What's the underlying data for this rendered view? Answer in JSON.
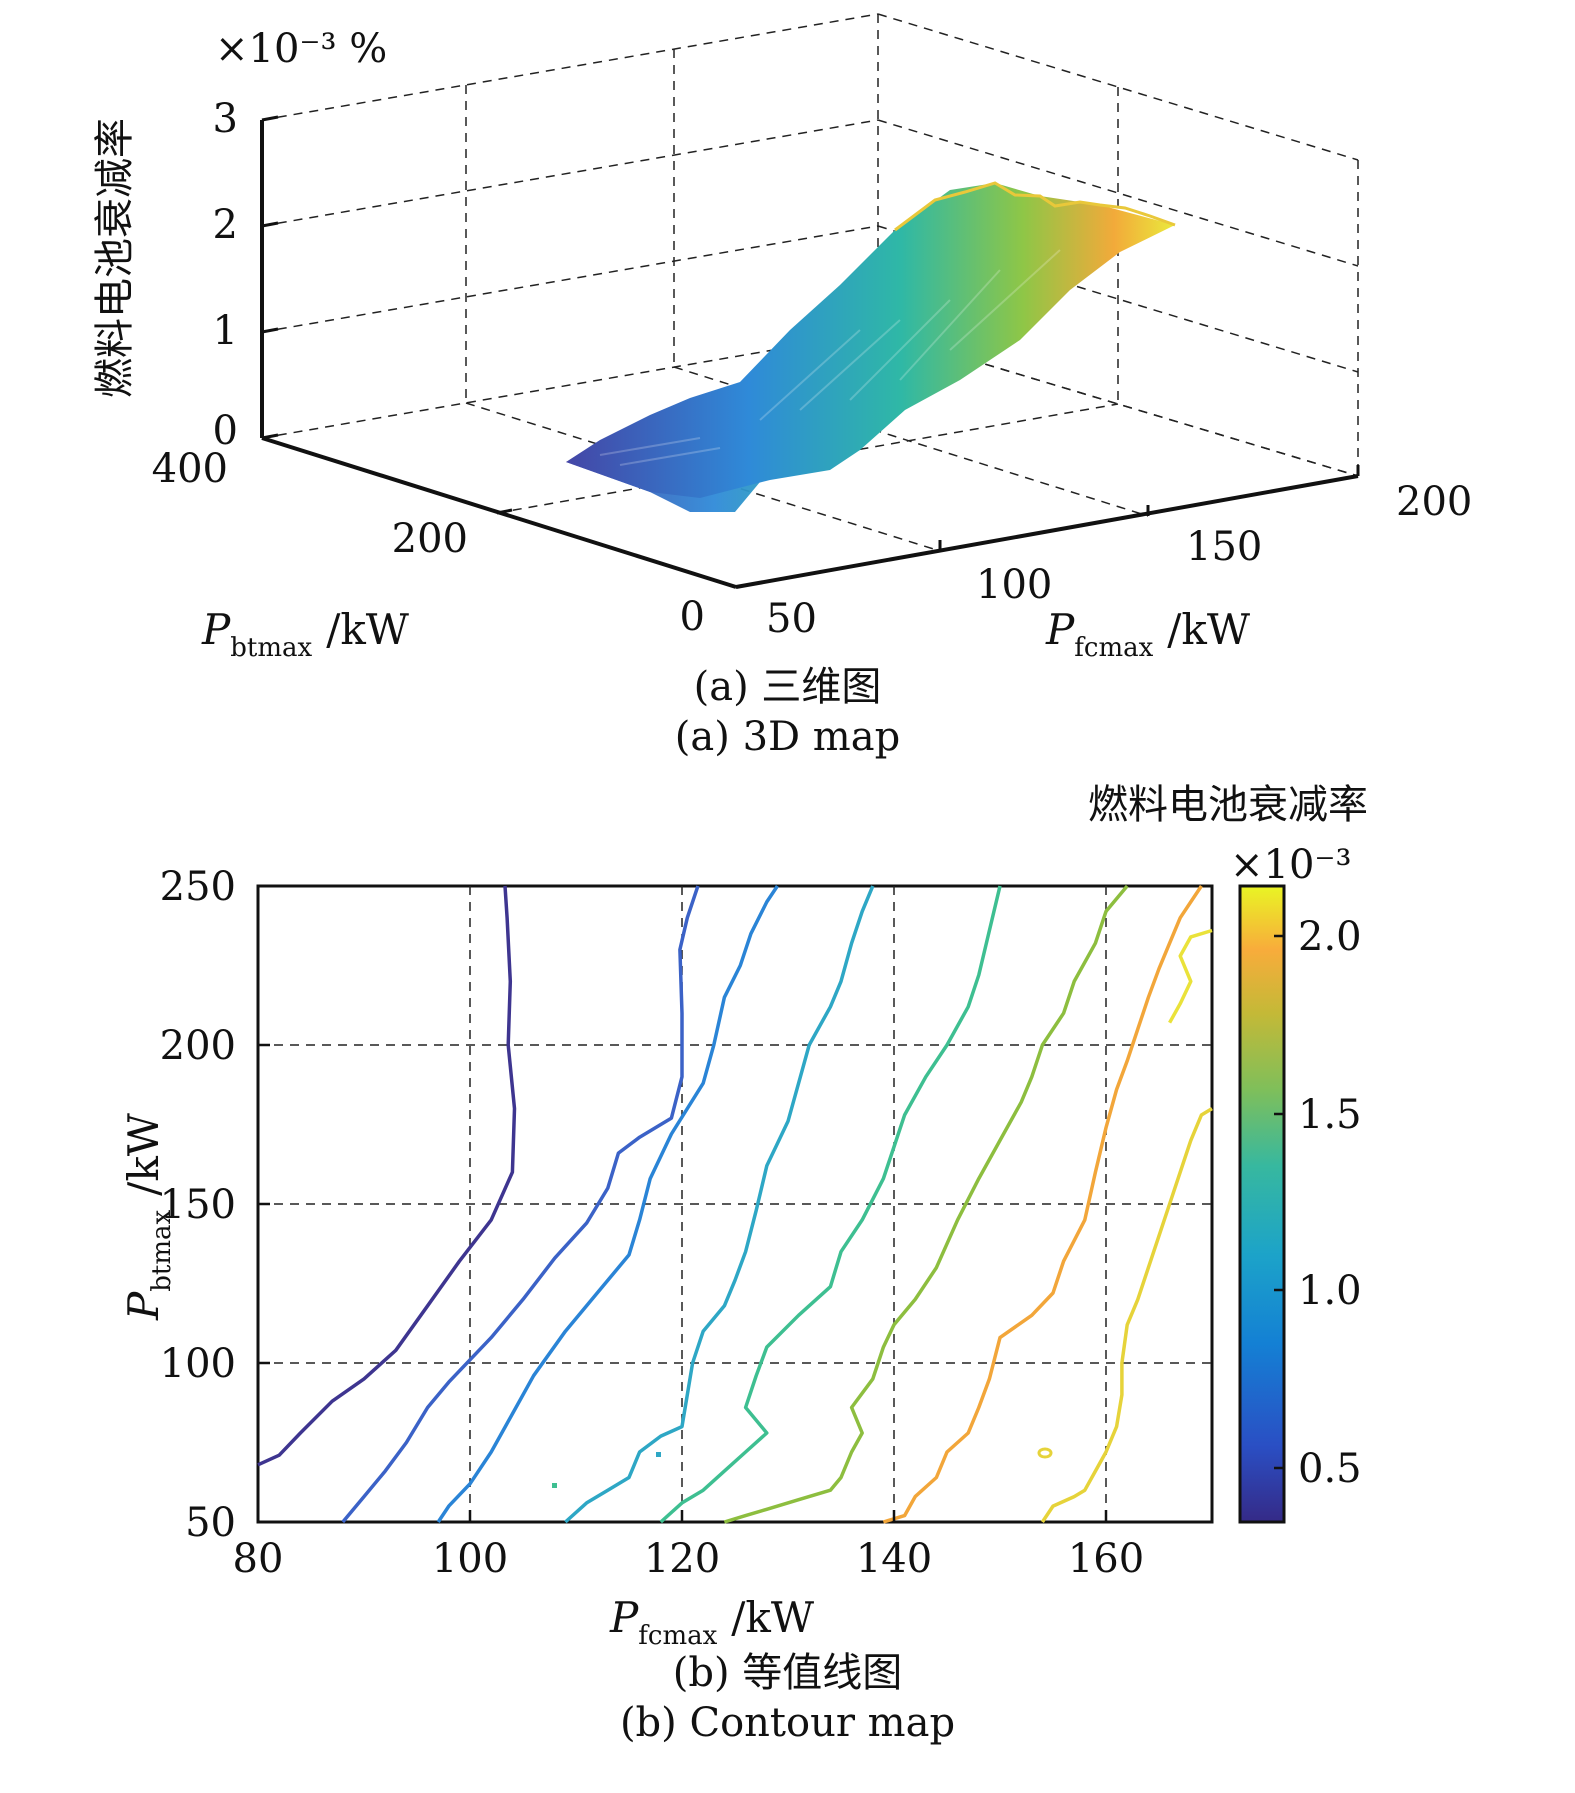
{
  "chart_data": [
    {
      "type": "surface",
      "caption_cn": "(a) 三维图",
      "caption_en": "(a) 3D map",
      "zlabel": "燃料电池衰减率",
      "z_multiplier": "×10⁻³ %",
      "xlabel_sym": "P",
      "xlabel_sub": "btmax",
      "xlabel_unit": "/kW",
      "ylabel_sym": "P",
      "ylabel_sub": "fcmax",
      "ylabel_unit": "/kW",
      "x_ticks": [
        "400",
        "200",
        "0"
      ],
      "y_ticks": [
        "50",
        "100",
        "150",
        "200"
      ],
      "z_ticks": [
        "3",
        "2",
        "1",
        "0"
      ],
      "x_range_btmax": [
        0,
        400
      ],
      "y_range_fcmax": [
        50,
        200
      ],
      "z_range": [
        0,
        3
      ],
      "surface_extent": {
        "fcmax": [
          80,
          170
        ],
        "btmax": [
          50,
          250
        ]
      },
      "surface_heights": [
        {
          "fcmax": 80,
          "z": 0.3
        },
        {
          "fcmax": 100,
          "z": 0.45
        },
        {
          "fcmax": 120,
          "z": 0.9
        },
        {
          "fcmax": 140,
          "z": 1.45
        },
        {
          "fcmax": 160,
          "z": 1.95
        },
        {
          "fcmax": 170,
          "z": 2.15
        }
      ],
      "colormap": "parula",
      "grid": true
    },
    {
      "type": "contour",
      "caption_cn": "(b) 等值线图",
      "caption_en": "(b) Contour map",
      "colorbar_title": "燃料电池衰减率",
      "colorbar_multiplier": "×10⁻³",
      "colorbar_ticks": [
        "2.0",
        "1.5",
        "1.0",
        "0.5"
      ],
      "colorbar_range": [
        0.35,
        2.15
      ],
      "xlabel_sym": "P",
      "xlabel_sub": "fcmax",
      "xlabel_unit": "/kW",
      "ylabel_sym": "P",
      "ylabel_sub": "btmax",
      "ylabel_unit": "/kW",
      "x_ticks": [
        "80",
        "100",
        "120",
        "140",
        "160"
      ],
      "y_ticks": [
        "250",
        "200",
        "150",
        "100",
        "50"
      ],
      "xlim": [
        80,
        170
      ],
      "ylim": [
        50,
        250
      ],
      "grid": true,
      "levels": [
        {
          "level": 0.4,
          "color": "#3e3590",
          "points": [
            [
              80,
              68
            ],
            [
              82,
              71
            ],
            [
              84,
              78
            ],
            [
              87,
              88
            ],
            [
              90,
              95
            ],
            [
              93,
              104
            ],
            [
              96,
              118
            ],
            [
              99,
              132
            ],
            [
              102,
              145
            ],
            [
              104,
              160
            ],
            [
              104.2,
              180
            ],
            [
              103.6,
              200
            ],
            [
              103.8,
              220
            ],
            [
              103.5,
              240
            ],
            [
              103.3,
              250
            ]
          ]
        },
        {
          "level": 0.6,
          "color": "#3b62c7",
          "points": [
            [
              88,
              50
            ],
            [
              90,
              58
            ],
            [
              92,
              66
            ],
            [
              94,
              75
            ],
            [
              96,
              86
            ],
            [
              98,
              94
            ],
            [
              100,
              101
            ],
            [
              102,
              108
            ],
            [
              105,
              120
            ],
            [
              108,
              133
            ],
            [
              111,
              144
            ],
            [
              113,
              155
            ],
            [
              114,
              166
            ],
            [
              116,
              171
            ],
            [
              119,
              177
            ],
            [
              120,
              190
            ],
            [
              120,
              210
            ],
            [
              119.8,
              230
            ],
            [
              120.5,
              240
            ],
            [
              121.5,
              250
            ]
          ]
        },
        {
          "level": 0.8,
          "color": "#2a84d6",
          "points": [
            [
              97,
              50
            ],
            [
              98,
              55
            ],
            [
              100,
              62
            ],
            [
              102,
              72
            ],
            [
              104,
              84
            ],
            [
              106,
              96
            ],
            [
              109,
              110
            ],
            [
              112,
              122
            ],
            [
              115,
              134
            ],
            [
              116,
              145
            ],
            [
              117,
              158
            ],
            [
              119,
              172
            ],
            [
              122,
              188
            ],
            [
              123,
              200
            ],
            [
              124,
              215
            ],
            [
              125.5,
              225
            ],
            [
              126.5,
              235
            ],
            [
              128,
              245
            ],
            [
              129,
              250
            ]
          ]
        },
        {
          "level": 1.0,
          "color": "#2ea7c5",
          "points": [
            [
              109,
              50
            ],
            [
              111,
              56
            ],
            [
              113,
              60
            ],
            [
              115,
              64
            ],
            [
              116,
              72
            ],
            [
              118,
              77
            ],
            [
              120,
              80
            ],
            [
              120.5,
              90
            ],
            [
              121,
              100
            ],
            [
              122,
              110
            ],
            [
              124,
              118
            ],
            [
              125,
              126
            ],
            [
              126,
              135
            ],
            [
              127,
              148
            ],
            [
              128,
              162
            ],
            [
              130,
              176
            ],
            [
              131,
              188
            ],
            [
              132,
              200
            ],
            [
              134,
              212
            ],
            [
              135,
              220
            ],
            [
              136,
              232
            ],
            [
              137,
              242
            ],
            [
              138,
              250
            ]
          ]
        },
        {
          "level": 1.25,
          "color": "#3ebf91",
          "points": [
            [
              118,
              50
            ],
            [
              120,
              56
            ],
            [
              122,
              60
            ],
            [
              124,
              66
            ],
            [
              126,
              72
            ],
            [
              128,
              78
            ],
            [
              126,
              86
            ],
            [
              127,
              96
            ],
            [
              128,
              105
            ],
            [
              131,
              115
            ],
            [
              134,
              124
            ],
            [
              135,
              135
            ],
            [
              137,
              145
            ],
            [
              139,
              158
            ],
            [
              140,
              168
            ],
            [
              141,
              178
            ],
            [
              143,
              190
            ],
            [
              145,
              200
            ],
            [
              147,
              212
            ],
            [
              148,
              222
            ],
            [
              149,
              236
            ],
            [
              150,
              250
            ]
          ]
        },
        {
          "level": 1.5,
          "color": "#8dbe3f",
          "points": [
            [
              124,
              50
            ],
            [
              126,
              52
            ],
            [
              128,
              54
            ],
            [
              131,
              57
            ],
            [
              134,
              60
            ],
            [
              135,
              64
            ],
            [
              136,
              72
            ],
            [
              137,
              78
            ],
            [
              136,
              86
            ],
            [
              138,
              95
            ],
            [
              139,
              105
            ],
            [
              140,
              112
            ],
            [
              142,
              120
            ],
            [
              144,
              130
            ],
            [
              146,
              145
            ],
            [
              148,
              158
            ],
            [
              150,
              170
            ],
            [
              152,
              182
            ],
            [
              153,
              190
            ],
            [
              154,
              200
            ],
            [
              156,
              210
            ],
            [
              157,
              220
            ],
            [
              159,
              232
            ],
            [
              160,
              242
            ],
            [
              162,
              250
            ]
          ]
        },
        {
          "level": 1.75,
          "color": "#f2a63a",
          "points": [
            [
              139,
              50
            ],
            [
              141,
              52
            ],
            [
              142,
              58
            ],
            [
              144,
              64
            ],
            [
              145,
              72
            ],
            [
              147,
              78
            ],
            [
              148,
              86
            ],
            [
              149,
              95
            ],
            [
              150,
              108
            ],
            [
              153,
              115
            ],
            [
              155,
              122
            ],
            [
              156,
              132
            ],
            [
              158,
              145
            ],
            [
              159,
              160
            ],
            [
              160,
              174
            ],
            [
              161,
              186
            ],
            [
              162,
              195
            ],
            [
              163,
              205
            ],
            [
              164,
              215
            ],
            [
              165,
              224
            ],
            [
              166,
              232
            ],
            [
              167,
              240
            ],
            [
              168,
              245
            ],
            [
              169,
              250
            ]
          ]
        },
        {
          "level": 2.0,
          "color": "#e6d33a",
          "points": [
            [
              154,
              50
            ],
            [
              155,
              55
            ],
            [
              157,
              58
            ],
            [
              158,
              60
            ],
            [
              159,
              66
            ],
            [
              160,
              72
            ],
            [
              161,
              80
            ],
            [
              161.5,
              90
            ],
            [
              161.5,
              100
            ],
            [
              162,
              112
            ],
            [
              163,
              120
            ],
            [
              164,
              130
            ],
            [
              165,
              140
            ],
            [
              166,
              150
            ],
            [
              167,
              160
            ],
            [
              168,
              170
            ],
            [
              169,
              178
            ],
            [
              170,
              180
            ]
          ]
        },
        {
          "level": 2.05,
          "color": "#eae23a",
          "points": [
            [
              166,
              207
            ],
            [
              167,
              213
            ],
            [
              168,
              220
            ],
            [
              167,
              228
            ],
            [
              168,
              234
            ],
            [
              170,
              236
            ]
          ]
        }
      ]
    }
  ]
}
